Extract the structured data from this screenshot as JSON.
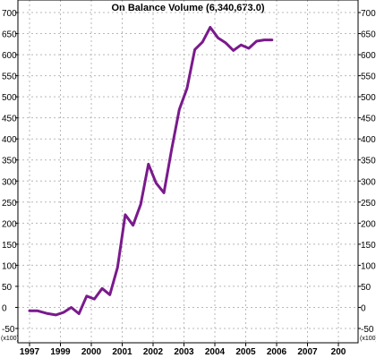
{
  "chart_data": {
    "type": "line",
    "title": "On Balance Volume (6,340,673.0)",
    "xlabel": "",
    "ylabel": "",
    "y_unit": "x100",
    "ylim": [
      -50,
      700
    ],
    "y_ticks": [
      -50,
      0,
      50,
      100,
      150,
      200,
      250,
      300,
      350,
      400,
      450,
      500,
      550,
      600,
      650,
      700
    ],
    "x_ticks": [
      "1997",
      "1999",
      "2000",
      "2001",
      "2002",
      "2003",
      "2004",
      "2005",
      "2006",
      "2007",
      "200"
    ],
    "grid": true,
    "line_color": "#7a1a8c",
    "series": [
      {
        "x": [
          1997.0,
          1997.25,
          1997.55,
          1997.85,
          1998.1,
          1998.35,
          1998.6,
          1998.85,
          1999.1,
          1999.35,
          1999.6,
          1999.85,
          2000.1,
          2000.35,
          2000.6,
          2000.85,
          2001.1,
          2001.35,
          2001.6,
          2001.85,
          2002.1,
          2002.35,
          2002.6,
          2002.85,
          2003.1,
          2003.35,
          2003.6,
          2003.85,
          2004.1,
          2004.35,
          2004.6,
          2004.85
        ],
        "values": [
          -8,
          -8,
          -14,
          -18,
          -12,
          0,
          -15,
          27,
          20,
          45,
          30,
          95,
          220,
          195,
          245,
          340,
          295,
          272,
          375,
          470,
          520,
          612,
          630,
          665,
          640,
          628,
          610,
          623,
          615,
          632,
          635,
          635
        ]
      }
    ]
  }
}
